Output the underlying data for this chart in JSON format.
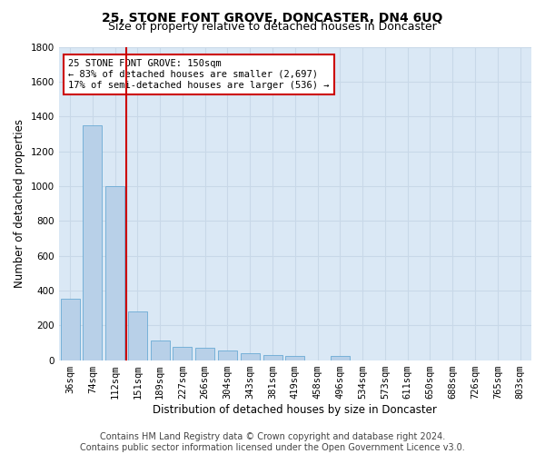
{
  "title": "25, STONE FONT GROVE, DONCASTER, DN4 6UQ",
  "subtitle": "Size of property relative to detached houses in Doncaster",
  "xlabel": "Distribution of detached houses by size in Doncaster",
  "ylabel": "Number of detached properties",
  "categories": [
    "36sqm",
    "74sqm",
    "112sqm",
    "151sqm",
    "189sqm",
    "227sqm",
    "266sqm",
    "304sqm",
    "343sqm",
    "381sqm",
    "419sqm",
    "458sqm",
    "496sqm",
    "534sqm",
    "573sqm",
    "611sqm",
    "650sqm",
    "688sqm",
    "726sqm",
    "765sqm",
    "803sqm"
  ],
  "values": [
    350,
    1350,
    1000,
    280,
    110,
    75,
    70,
    55,
    40,
    28,
    25,
    0,
    22,
    0,
    0,
    0,
    0,
    0,
    0,
    0,
    0
  ],
  "bar_color": "#b8d0e8",
  "bar_edge_color": "#6aaad4",
  "vline_index": 2,
  "vline_color": "#cc0000",
  "annotation_line1": "25 STONE FONT GROVE: 150sqm",
  "annotation_line2": "← 83% of detached houses are smaller (2,697)",
  "annotation_line3": "17% of semi-detached houses are larger (536) →",
  "annotation_box_facecolor": "#ffffff",
  "annotation_box_edgecolor": "#cc0000",
  "ylim": [
    0,
    1800
  ],
  "yticks": [
    0,
    200,
    400,
    600,
    800,
    1000,
    1200,
    1400,
    1600,
    1800
  ],
  "grid_color": "#c8d8e8",
  "bg_color": "#dae8f5",
  "footer_line1": "Contains HM Land Registry data © Crown copyright and database right 2024.",
  "footer_line2": "Contains public sector information licensed under the Open Government Licence v3.0.",
  "title_fontsize": 10,
  "subtitle_fontsize": 9,
  "xlabel_fontsize": 8.5,
  "ylabel_fontsize": 8.5,
  "tick_fontsize": 7.5,
  "annotation_fontsize": 7.5,
  "footer_fontsize": 7
}
